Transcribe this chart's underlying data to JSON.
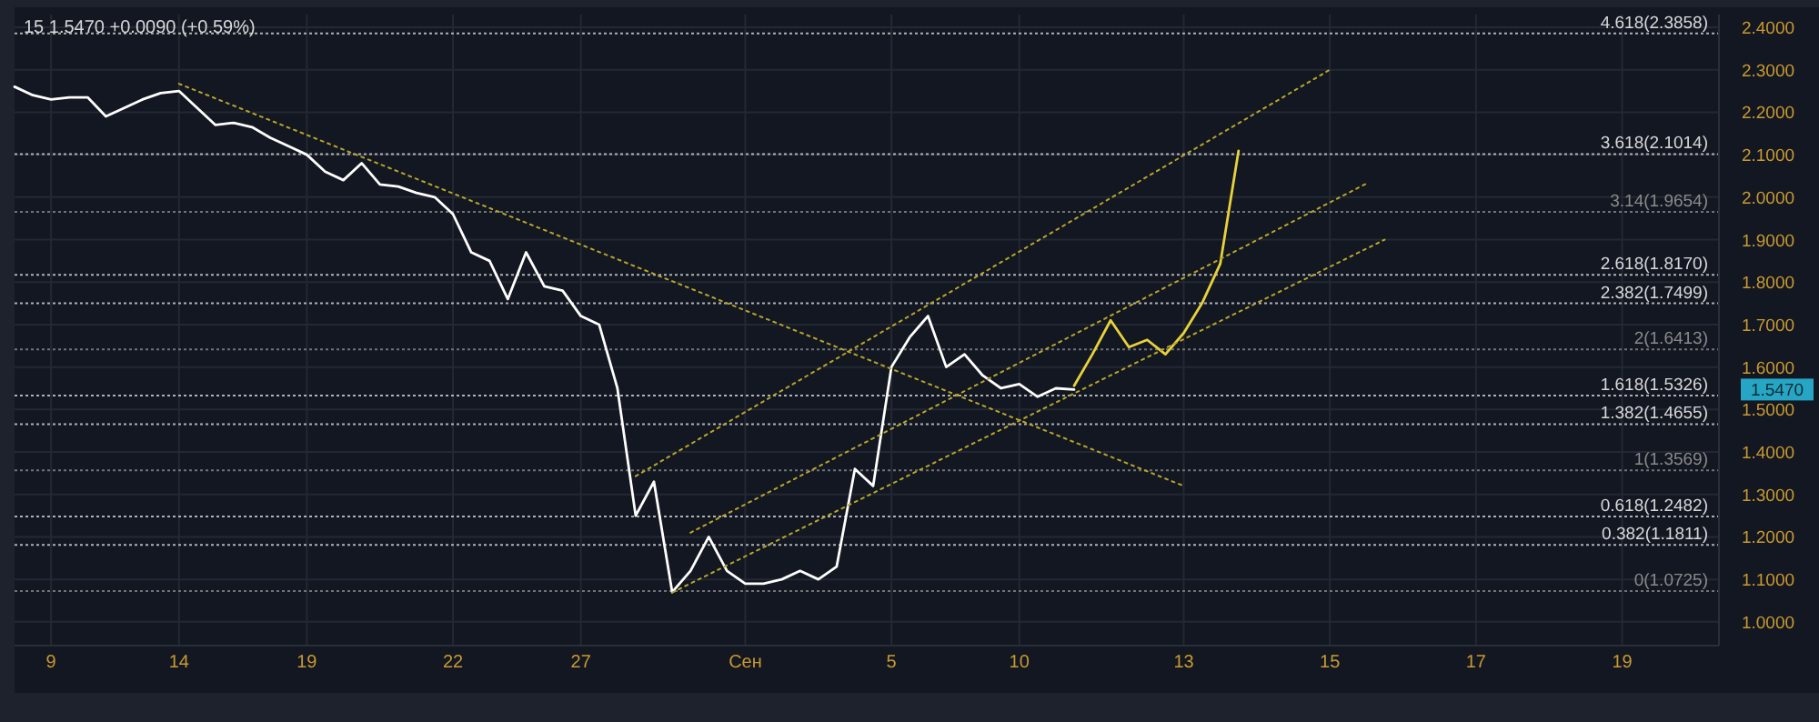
{
  "chart_data": {
    "type": "line",
    "title": "15 1.5470 +0.0090 (+0.59%)",
    "categories": [
      null,
      null,
      "9",
      null,
      null,
      null,
      null,
      null,
      null,
      "14",
      null,
      null,
      null,
      null,
      null,
      null,
      "19",
      null,
      null,
      null,
      null,
      null,
      null,
      null,
      "22",
      null,
      null,
      null,
      null,
      null,
      null,
      "27",
      null,
      null,
      null,
      null,
      null,
      null,
      null,
      null,
      "Сен",
      null,
      null,
      null,
      null,
      null,
      null,
      null,
      "5",
      null,
      null,
      null,
      null,
      null,
      null,
      "10",
      null,
      null,
      null,
      null,
      null,
      null,
      null,
      null,
      "13",
      null,
      null,
      null,
      null,
      null,
      null,
      null,
      "15",
      null,
      null,
      null,
      null,
      null,
      null,
      null,
      "17",
      null,
      null,
      null,
      null,
      null,
      null,
      null,
      "19",
      null,
      null,
      null,
      null,
      null
    ],
    "ylim": [
      0.944,
      2.43
    ],
    "yticks": [
      {
        "value": 1.0,
        "label": "1.0000"
      },
      {
        "value": 1.1,
        "label": "1.1000"
      },
      {
        "value": 1.2,
        "label": "1.2000"
      },
      {
        "value": 1.3,
        "label": "1.3000"
      },
      {
        "value": 1.4,
        "label": "1.4000"
      },
      {
        "value": 1.5,
        "label": "1.5000"
      },
      {
        "value": 1.6,
        "label": "1.6000"
      },
      {
        "value": 1.7,
        "label": "1.7000"
      },
      {
        "value": 1.8,
        "label": "1.8000"
      },
      {
        "value": 1.9,
        "label": "1.9000"
      },
      {
        "value": 2.0,
        "label": "2.0000"
      },
      {
        "value": 2.1,
        "label": "2.1000"
      },
      {
        "value": 2.2,
        "label": "2.2000"
      },
      {
        "value": 2.3,
        "label": "2.3000"
      },
      {
        "value": 2.4,
        "label": "2.4000"
      }
    ],
    "grid": true,
    "series": [
      {
        "color": "#ffffff",
        "line_style": "solid",
        "values": [
          2.26,
          2.24,
          2.23,
          2.235,
          2.235,
          2.19,
          2.21,
          2.23,
          2.245,
          2.25,
          2.21,
          2.17,
          2.175,
          2.165,
          2.14,
          2.12,
          2.1,
          2.06,
          2.04,
          2.08,
          2.03,
          2.025,
          2.01,
          2.0,
          1.96,
          1.87,
          1.85,
          1.76,
          1.87,
          1.79,
          1.78,
          1.72,
          1.7,
          1.55,
          1.25,
          1.33,
          1.07,
          1.12,
          1.2,
          1.12,
          1.09,
          1.09,
          1.1,
          1.12,
          1.1,
          1.13,
          1.36,
          1.32,
          1.6,
          1.67,
          1.72,
          1.6,
          1.63,
          1.58,
          1.55,
          1.56,
          1.53,
          1.55,
          1.547,
          null,
          null,
          null,
          null,
          null,
          null,
          null,
          null,
          null,
          null,
          null,
          null,
          null,
          null,
          null,
          null,
          null,
          null,
          null,
          null,
          null,
          null,
          null,
          null,
          null,
          null,
          null,
          null,
          null,
          null,
          null,
          null,
          null,
          null,
          null
        ]
      },
      {
        "color": "#e8d23a",
        "line_style": "solid",
        "values": [
          null,
          null,
          null,
          null,
          null,
          null,
          null,
          null,
          null,
          null,
          null,
          null,
          null,
          null,
          null,
          null,
          null,
          null,
          null,
          null,
          null,
          null,
          null,
          null,
          null,
          null,
          null,
          null,
          null,
          null,
          null,
          null,
          null,
          null,
          null,
          null,
          null,
          null,
          null,
          null,
          null,
          null,
          null,
          null,
          null,
          null,
          null,
          null,
          null,
          null,
          null,
          null,
          null,
          null,
          null,
          null,
          null,
          null,
          1.556,
          1.63,
          1.71,
          1.647,
          1.664,
          1.63,
          1.68,
          1.75,
          1.843,
          2.109,
          null,
          null,
          null,
          null,
          null,
          null,
          null,
          null,
          null,
          null,
          null,
          null,
          null,
          null,
          null,
          null,
          null,
          null,
          null,
          null,
          null,
          null,
          null,
          null,
          null,
          null
        ]
      },
      {
        "color": "#b8a62a",
        "line_style": "dotted",
        "values": [
          null,
          null,
          null,
          null,
          null,
          null,
          null,
          null,
          null,
          2.267,
          null,
          null,
          null,
          null,
          null,
          null,
          null,
          null,
          null,
          null,
          null,
          null,
          null,
          null,
          null,
          null,
          null,
          null,
          null,
          null,
          null,
          null,
          null,
          null,
          null,
          null,
          null,
          null,
          null,
          null,
          null,
          null,
          null,
          null,
          null,
          null,
          null,
          null,
          null,
          null,
          null,
          null,
          null,
          null,
          null,
          null,
          null,
          null,
          null,
          null,
          null,
          null,
          null,
          null,
          1.32,
          null,
          null,
          null,
          null,
          null,
          null,
          null,
          null,
          null,
          null,
          null,
          null,
          null,
          null,
          null,
          null,
          null,
          null,
          null,
          null,
          null,
          null,
          null,
          null,
          null,
          null,
          null,
          null,
          null
        ]
      },
      {
        "color": "#b8a62a",
        "line_style": "dotted",
        "values": [
          null,
          null,
          null,
          null,
          null,
          null,
          null,
          null,
          null,
          null,
          null,
          null,
          null,
          null,
          null,
          null,
          null,
          null,
          null,
          null,
          null,
          null,
          null,
          null,
          null,
          null,
          null,
          null,
          null,
          null,
          null,
          null,
          null,
          null,
          1.343,
          null,
          null,
          null,
          null,
          null,
          null,
          null,
          null,
          null,
          null,
          null,
          null,
          null,
          null,
          null,
          null,
          null,
          null,
          null,
          null,
          null,
          null,
          null,
          null,
          null,
          null,
          null,
          null,
          null,
          null,
          null,
          null,
          null,
          null,
          null,
          null,
          null,
          2.3,
          null,
          null,
          null,
          null,
          null,
          null,
          null,
          null,
          null,
          null,
          null,
          null,
          null,
          null,
          null,
          null,
          null,
          null,
          null,
          null,
          null
        ]
      },
      {
        "color": "#b8a62a",
        "line_style": "dotted",
        "values": [
          null,
          null,
          null,
          null,
          null,
          null,
          null,
          null,
          null,
          null,
          null,
          null,
          null,
          null,
          null,
          null,
          null,
          null,
          null,
          null,
          null,
          null,
          null,
          null,
          null,
          null,
          null,
          null,
          null,
          null,
          null,
          null,
          null,
          null,
          null,
          null,
          null,
          1.21,
          null,
          null,
          null,
          null,
          null,
          null,
          null,
          null,
          null,
          null,
          null,
          null,
          null,
          null,
          null,
          null,
          null,
          null,
          null,
          null,
          null,
          null,
          null,
          null,
          null,
          null,
          null,
          null,
          null,
          null,
          null,
          null,
          null,
          null,
          null,
          null,
          2.032,
          null,
          null,
          null,
          null,
          null,
          null,
          null,
          null,
          null,
          null,
          null,
          null,
          null,
          null,
          null,
          null,
          null,
          null,
          null
        ]
      },
      {
        "color": "#b8a62a",
        "line_style": "dotted",
        "values": [
          null,
          null,
          null,
          null,
          null,
          null,
          null,
          null,
          null,
          null,
          null,
          null,
          null,
          null,
          null,
          null,
          null,
          null,
          null,
          null,
          null,
          null,
          null,
          null,
          null,
          null,
          null,
          null,
          null,
          null,
          null,
          null,
          null,
          null,
          null,
          null,
          1.069,
          null,
          null,
          null,
          null,
          null,
          null,
          null,
          null,
          null,
          null,
          null,
          null,
          null,
          null,
          null,
          null,
          null,
          null,
          null,
          null,
          null,
          null,
          null,
          null,
          null,
          null,
          null,
          null,
          null,
          null,
          null,
          null,
          null,
          null,
          null,
          null,
          null,
          null,
          1.9,
          null,
          null,
          null,
          null,
          null,
          null,
          null,
          null,
          null,
          null,
          null,
          null,
          null,
          null,
          null,
          null,
          null,
          null
        ]
      }
    ],
    "ref_lines": [
      {
        "axis": "y",
        "value": 2.3858,
        "label": "4.618(2.3858)",
        "color": "#d8d8d8"
      },
      {
        "axis": "y",
        "value": 2.1014,
        "label": "3.618(2.1014)",
        "color": "#d8d8d8"
      },
      {
        "axis": "y",
        "value": 1.9654,
        "label": "3.14(1.9654)",
        "color": "#8a8a8a"
      },
      {
        "axis": "y",
        "value": 1.817,
        "label": "2.618(1.8170)",
        "color": "#d8d8d8"
      },
      {
        "axis": "y",
        "value": 1.7499,
        "label": "2.382(1.7499)",
        "color": "#d8d8d8"
      },
      {
        "axis": "y",
        "value": 1.6413,
        "label": "2(1.6413)",
        "color": "#8a8a8a"
      },
      {
        "axis": "y",
        "value": 1.5326,
        "label": "1.618(1.5326)",
        "color": "#d8d8d8"
      },
      {
        "axis": "y",
        "value": 1.4655,
        "label": "1.382(1.4655)",
        "color": "#d8d8d8"
      },
      {
        "axis": "y",
        "value": 1.3569,
        "label": "1(1.3569)",
        "color": "#8a8a8a"
      },
      {
        "axis": "y",
        "value": 1.2482,
        "label": "0.618(1.2482)",
        "color": "#d8d8d8"
      },
      {
        "axis": "y",
        "value": 1.1811,
        "label": "0.382(1.1811)",
        "color": "#d8d8d8"
      },
      {
        "axis": "y",
        "value": 1.0725,
        "label": "0(1.0725)",
        "color": "#8a8a8a"
      }
    ],
    "annotations": [
      "1.5470"
    ]
  }
}
